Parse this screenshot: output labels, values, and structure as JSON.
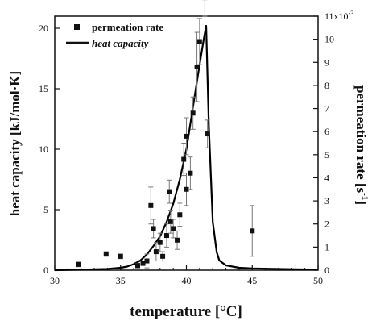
{
  "chart_data": {
    "type": "scatter",
    "xlabel": "temperature [°C]",
    "ylabel_left": "heat capacity [kJ/mol·K]",
    "ylabel_right_main": "permeation rate [s",
    "ylabel_right_exp": "-1",
    "ylabel_right_close": "]",
    "xlim": [
      30,
      50
    ],
    "ylim_left": [
      0,
      21
    ],
    "ylim_right": [
      0,
      0.011
    ],
    "x_ticks": [
      "30",
      "35",
      "40",
      "45",
      "50"
    ],
    "y_left_ticks": [
      "0",
      "5",
      "10",
      "15",
      "20"
    ],
    "y_right_ticks": [
      "0",
      "1",
      "2",
      "3",
      "4",
      "5",
      "6",
      "7",
      "8",
      "9",
      "10",
      "11x10-3"
    ],
    "legend": [
      "permeation rate",
      "heat capacity"
    ],
    "series": [
      {
        "name": "heat capacity",
        "kind": "line",
        "x": [
          30.0,
          32.0,
          34.0,
          35.0,
          35.5,
          36.0,
          36.5,
          37.0,
          37.5,
          38.0,
          38.5,
          39.0,
          39.5,
          40.0,
          40.5,
          41.0,
          41.3,
          41.5,
          41.7,
          42.0,
          42.3,
          42.5,
          43.0,
          44.0,
          45.0,
          47.0,
          50.0
        ],
        "y": [
          0.0,
          0.05,
          0.1,
          0.2,
          0.3,
          0.5,
          0.8,
          1.3,
          2.0,
          2.8,
          4.0,
          5.5,
          7.5,
          10.0,
          13.5,
          17.0,
          19.0,
          20.2,
          12.0,
          4.0,
          1.5,
          0.8,
          0.4,
          0.2,
          0.15,
          0.1,
          0.05
        ]
      },
      {
        "name": "permeation rate",
        "kind": "scatter",
        "x": [
          31.8,
          33.9,
          35.0,
          36.3,
          36.7,
          37.0,
          37.3,
          37.5,
          37.7,
          38.0,
          38.2,
          38.5,
          38.7,
          38.8,
          39.0,
          39.3,
          39.5,
          39.8,
          40.0,
          40.0,
          40.3,
          40.5,
          40.8,
          41.0,
          41.4,
          41.6,
          45.0
        ],
        "y": [
          0.00025,
          0.0007,
          0.0006,
          0.0002,
          0.0003,
          0.0004,
          0.0028,
          0.0018,
          0.0008,
          0.0012,
          0.0006,
          0.0015,
          0.0034,
          0.0021,
          0.0018,
          0.0013,
          0.0024,
          0.0048,
          0.0058,
          0.0035,
          0.0042,
          0.0068,
          0.0088,
          0.0099,
          0.0118,
          0.0059,
          0.0017
        ],
        "yerr": [
          0.0001,
          0.0001,
          0.0001,
          0.0001,
          0.0001,
          0.0003,
          0.0008,
          0.0004,
          0.0004,
          0.0004,
          0.0002,
          0.0005,
          0.0005,
          0.0005,
          0.0004,
          0.0004,
          0.0005,
          0.0007,
          0.0008,
          0.0007,
          0.0007,
          0.0007,
          0.0015,
          0.001,
          0.0008,
          0.0006,
          0.0011
        ]
      }
    ]
  }
}
